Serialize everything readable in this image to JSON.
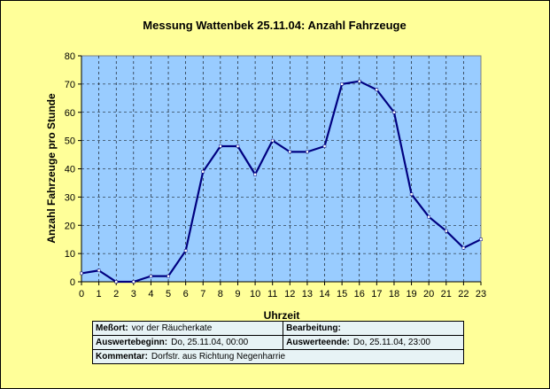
{
  "chart_data": {
    "type": "line",
    "title": "Messung Wattenbek 25.11.04: Anzahl Fahrzeuge",
    "xlabel": "Uhrzeit",
    "ylabel": "Anzahl Fahrzeuge pro Stunde",
    "x": [
      0,
      1,
      2,
      3,
      4,
      5,
      6,
      7,
      8,
      9,
      10,
      11,
      12,
      13,
      14,
      15,
      16,
      17,
      18,
      19,
      20,
      21,
      22,
      23
    ],
    "series": [
      {
        "values": [
          3,
          4,
          0,
          0,
          2,
          2,
          11,
          39,
          48,
          48,
          38,
          50,
          46,
          46,
          48,
          70,
          71,
          68,
          60,
          31,
          23,
          18,
          12,
          15
        ]
      }
    ],
    "xlim": [
      0,
      23
    ],
    "ylim": [
      0,
      80
    ],
    "yticks": [
      0,
      10,
      20,
      30,
      40,
      50,
      60,
      70,
      80
    ],
    "grid": true,
    "colors": {
      "plot_bg": "#99ccff",
      "line": "#000080",
      "marker": "#ffffff",
      "frame_bg": "#ffff99",
      "table_bg": "#e7f3f5"
    }
  },
  "info": {
    "messort_label": "Meßort:",
    "messort_value": "vor der Räucherkate",
    "bearbeitung_label": "Bearbeitung:",
    "bearbeitung_value": "",
    "beginn_label": "Auswertebeginn:",
    "beginn_value": "Do, 25.11.04, 00:00",
    "ende_label": "Auswerteende:",
    "ende_value": "Do, 25.11.04, 23:00",
    "kommentar_label": "Kommentar:",
    "kommentar_value": "Dorfstr. aus Richtung Negenharrie"
  }
}
